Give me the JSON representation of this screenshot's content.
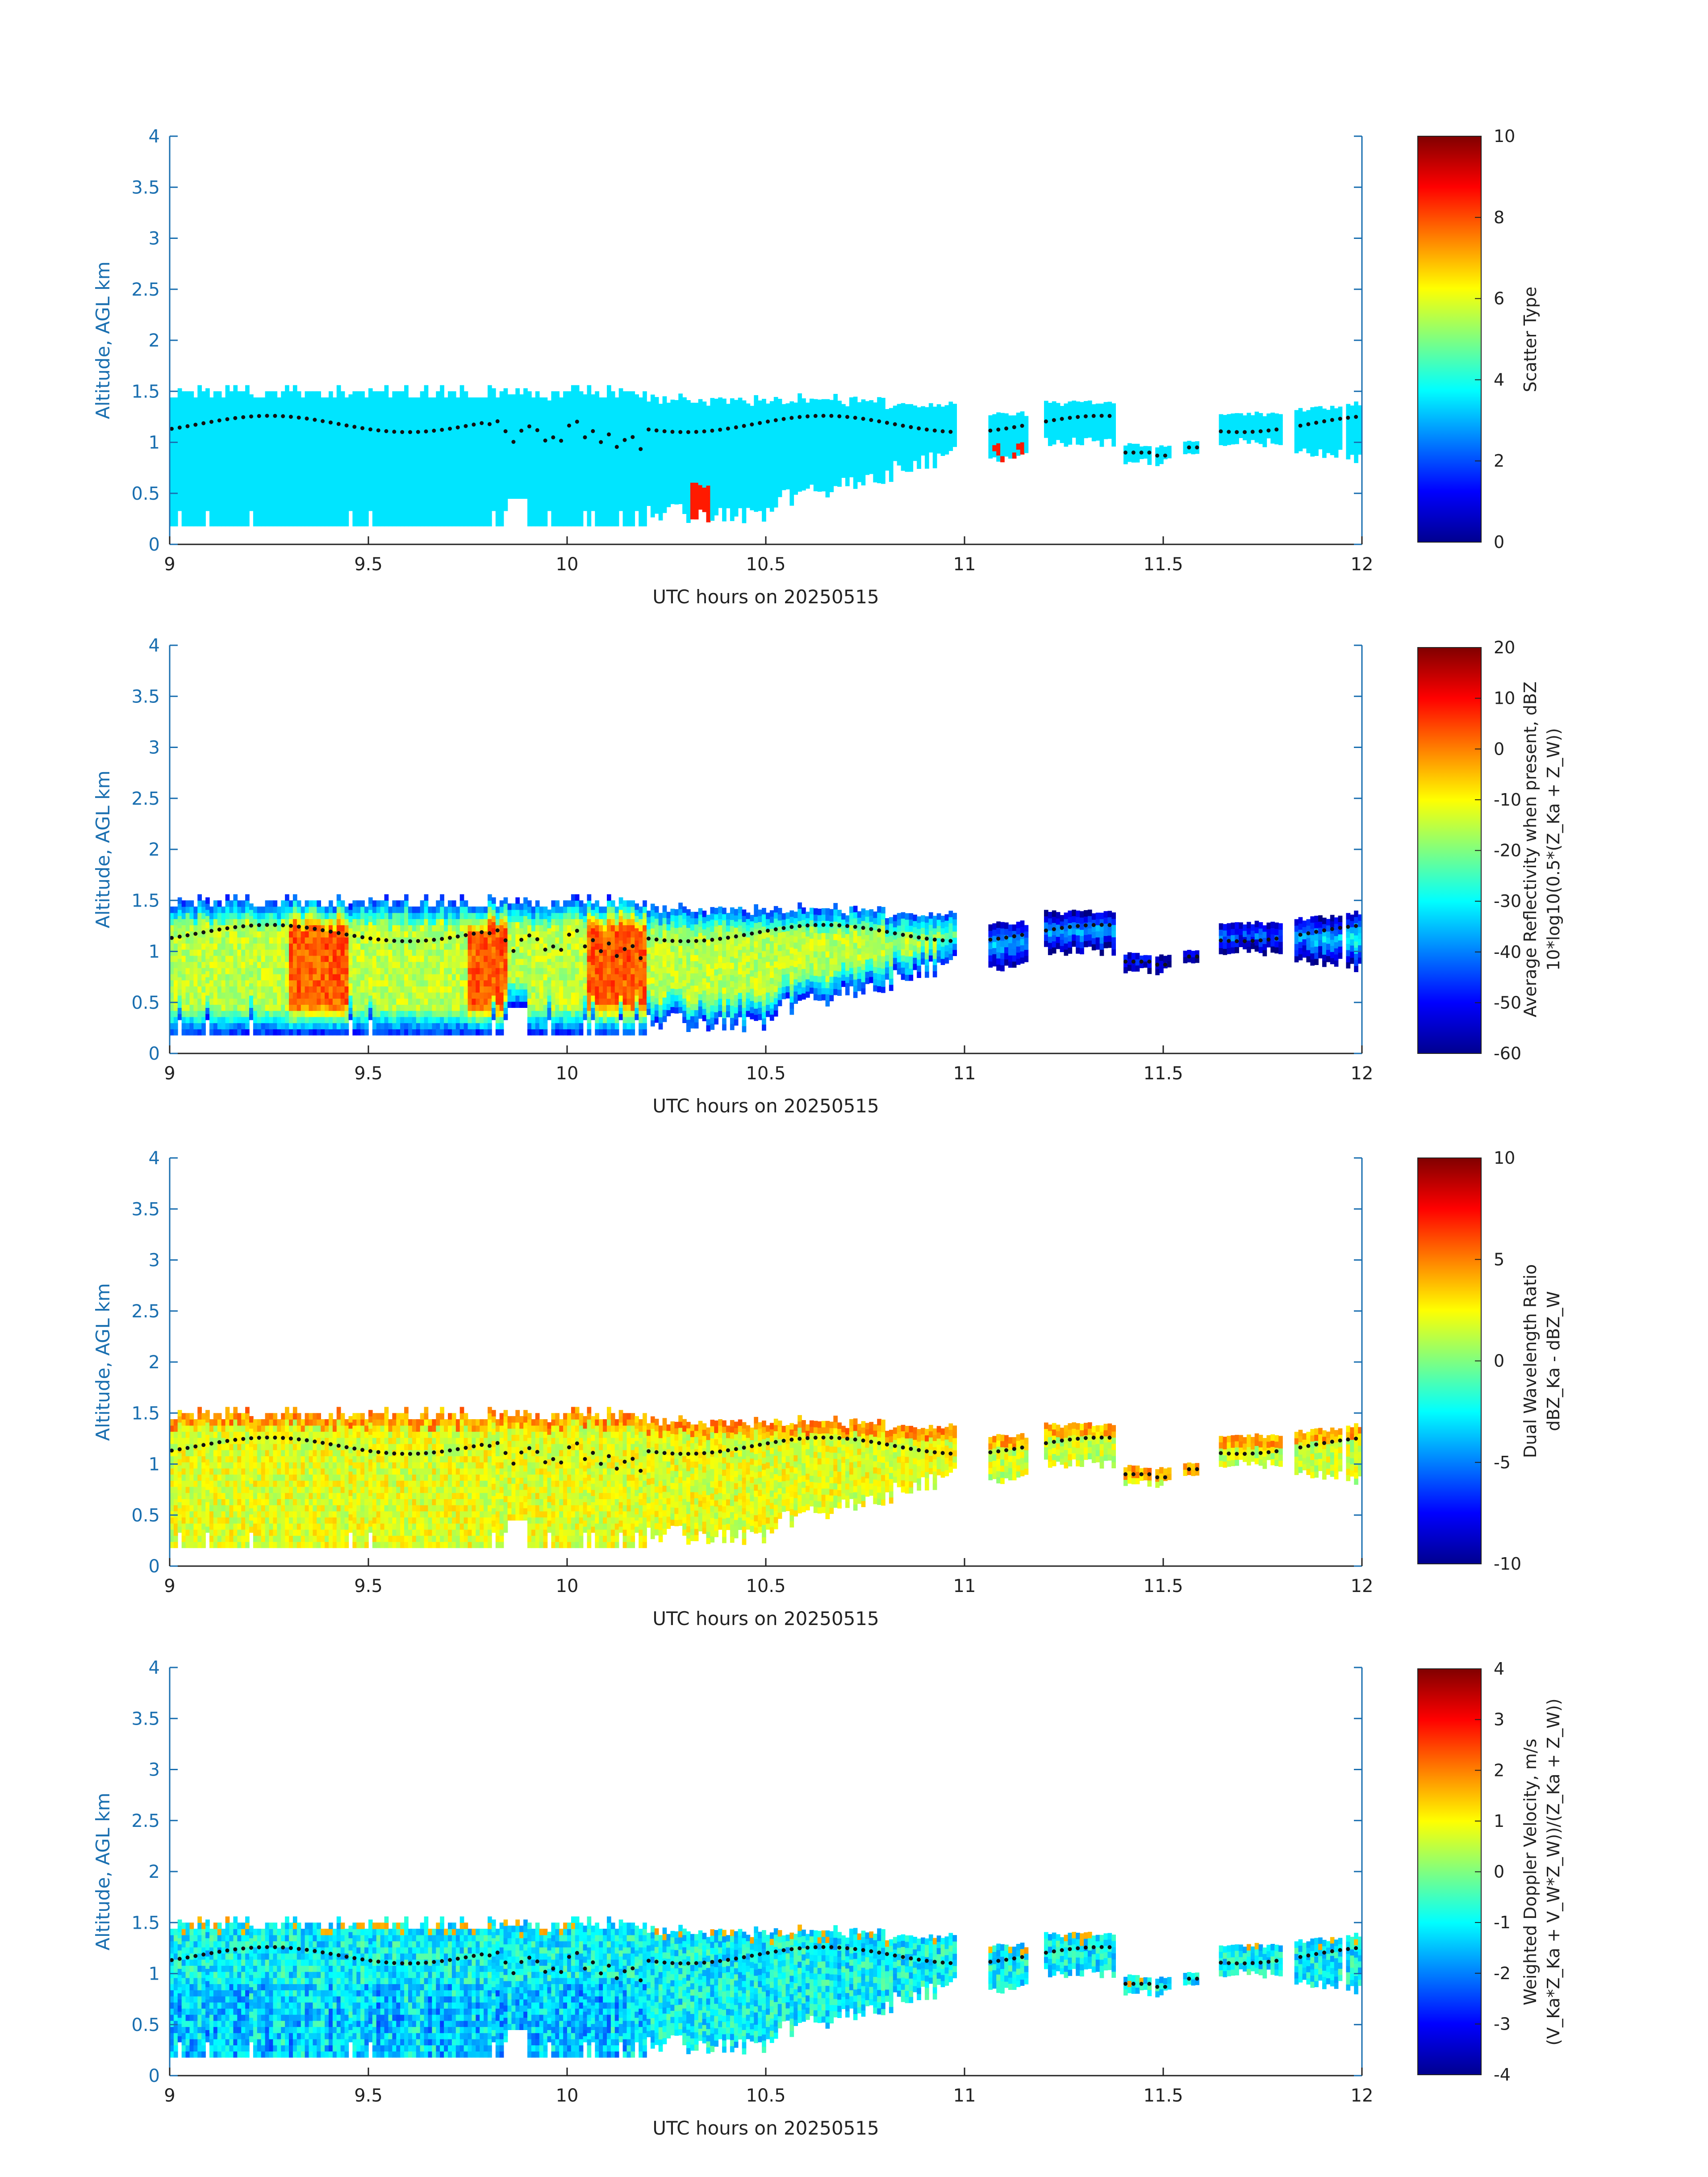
{
  "chart_data": [
    {
      "type": "heatmap",
      "xlabel": "UTC hours on 20250515",
      "ylabel": "Altitude, AGL km",
      "xlim": [
        9,
        12
      ],
      "ylim": [
        0,
        4
      ],
      "x_ticks": [
        "9",
        "9.5",
        "10",
        "10.5",
        "11",
        "11.5",
        "12"
      ],
      "y_ticks": [
        "0",
        "0.5",
        "1",
        "1.5",
        "2",
        "2.5",
        "3",
        "3.5",
        "4"
      ],
      "colorbar": {
        "label_lines": [
          "Scatter Type"
        ],
        "range": [
          0,
          10
        ],
        "ticks": [
          "0",
          "2",
          "4",
          "6",
          "8",
          "10"
        ],
        "colormap": "jet"
      },
      "dominant_value": 3.5,
      "secondary_value": 8.5,
      "overlay": "cloud-base dots"
    },
    {
      "type": "heatmap",
      "xlabel": "UTC hours on 20250515",
      "ylabel": "Altitude, AGL km",
      "xlim": [
        9,
        12
      ],
      "ylim": [
        0,
        4
      ],
      "x_ticks": [
        "9",
        "9.5",
        "10",
        "10.5",
        "11",
        "11.5",
        "12"
      ],
      "y_ticks": [
        "0",
        "0.5",
        "1",
        "1.5",
        "2",
        "2.5",
        "3",
        "3.5",
        "4"
      ],
      "colorbar": {
        "label_lines": [
          "Average Reflectivity when present, dBZ",
          "10*log10(0.5*(Z_Ka + Z_W))"
        ],
        "range": [
          -60,
          20
        ],
        "ticks": [
          "-60",
          "-50",
          "-40",
          "-30",
          "-20",
          "-10",
          "0",
          "10",
          "20"
        ],
        "colormap": "jet"
      },
      "value_range_observed": [
        -60,
        5
      ],
      "overlay": "cloud-base dots"
    },
    {
      "type": "heatmap",
      "xlabel": "UTC hours on 20250515",
      "ylabel": "Altitude, AGL km",
      "xlim": [
        9,
        12
      ],
      "ylim": [
        0,
        4
      ],
      "x_ticks": [
        "9",
        "9.5",
        "10",
        "10.5",
        "11",
        "11.5",
        "12"
      ],
      "y_ticks": [
        "0",
        "0.5",
        "1",
        "1.5",
        "2",
        "2.5",
        "3",
        "3.5",
        "4"
      ],
      "colorbar": {
        "label_lines": [
          "Dual Wavelength Ratio",
          "dBZ_Ka - dBZ_W"
        ],
        "range": [
          -10,
          10
        ],
        "ticks": [
          "-10",
          "-5",
          "0",
          "5",
          "10"
        ],
        "colormap": "jet"
      },
      "value_range_observed": [
        -2,
        8
      ],
      "overlay": "cloud-base dots"
    },
    {
      "type": "heatmap",
      "xlabel": "UTC hours on 20250515",
      "ylabel": "Altitude, AGL km",
      "xlim": [
        9,
        12
      ],
      "ylim": [
        0,
        4
      ],
      "x_ticks": [
        "9",
        "9.5",
        "10",
        "10.5",
        "11",
        "11.5",
        "12"
      ],
      "y_ticks": [
        "0",
        "0.5",
        "1",
        "1.5",
        "2",
        "2.5",
        "3",
        "3.5",
        "4"
      ],
      "colorbar": {
        "label_lines": [
          "Weighted Doppler Velocity, m/s",
          "(V_Ka*Z_Ka + V_W*Z_W))/(Z_Ka + Z_W))"
        ],
        "range": [
          -4,
          4
        ],
        "ticks": [
          "-4",
          "-3",
          "-2",
          "-1",
          "0",
          "1",
          "2",
          "3",
          "4"
        ],
        "colormap": "jet"
      },
      "value_range_observed": [
        -2.5,
        1
      ],
      "overlay": "cloud-base dots"
    }
  ]
}
